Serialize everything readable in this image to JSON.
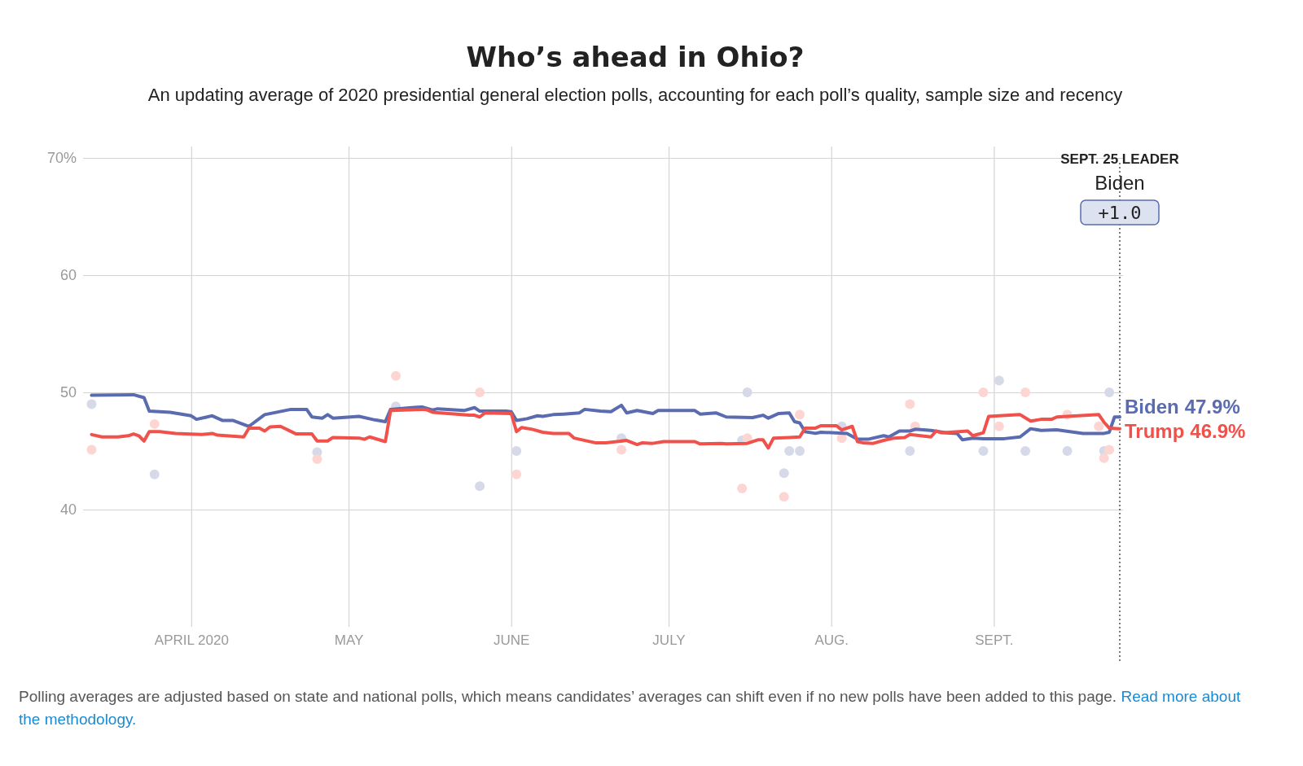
{
  "chart_data": {
    "type": "line",
    "title": "Who’s ahead in Ohio?",
    "subtitle": "An updating average of 2020 presidential general election polls, accounting for each poll’s quality, sample size and recency",
    "xlim": [
      "2020-03-12",
      "2020-09-25"
    ],
    "xticks": [
      {
        "value": "2020-04-01",
        "label": "APRIL 2020"
      },
      {
        "value": "2020-05-01",
        "label": "MAY"
      },
      {
        "value": "2020-06-01",
        "label": "JUNE"
      },
      {
        "value": "2020-07-01",
        "label": "JULY"
      },
      {
        "value": "2020-08-01",
        "label": "AUG."
      },
      {
        "value": "2020-09-01",
        "label": "SEPT."
      }
    ],
    "ylim": [
      30,
      70
    ],
    "yticks": [
      40,
      50,
      60,
      {
        "value": 70,
        "label": "70%"
      }
    ],
    "grid": true,
    "series": [
      {
        "type": "scatter",
        "color": "#d6dae8",
        "x": [
          "2020-03-13",
          "2020-03-25",
          "2020-04-25",
          "2020-05-10",
          "2020-05-26",
          "2020-06-02",
          "2020-06-22",
          "2020-07-15",
          "2020-07-16",
          "2020-07-23",
          "2020-07-24",
          "2020-07-26",
          "2020-08-03",
          "2020-08-16",
          "2020-08-30",
          "2020-09-02",
          "2020-09-07",
          "2020-09-15",
          "2020-09-22",
          "2020-09-23"
        ],
        "values": [
          49.0,
          43.0,
          44.9,
          48.8,
          42.0,
          45.0,
          46.1,
          45.9,
          50.0,
          43.1,
          45.0,
          45.0,
          47.1,
          45.0,
          45.0,
          51.0,
          45.0,
          45.0,
          45.0,
          50.0
        ]
      },
      {
        "type": "scatter",
        "color": "#fdd5d3",
        "x": [
          "2020-03-13",
          "2020-03-25",
          "2020-04-25",
          "2020-05-10",
          "2020-05-26",
          "2020-06-02",
          "2020-06-22",
          "2020-07-15",
          "2020-07-16",
          "2020-07-23",
          "2020-07-26",
          "2020-08-03",
          "2020-08-16",
          "2020-08-17",
          "2020-08-30",
          "2020-09-02",
          "2020-09-07",
          "2020-09-15",
          "2020-09-21",
          "2020-09-22",
          "2020-09-23"
        ],
        "values": [
          45.1,
          47.3,
          44.3,
          51.4,
          50.0,
          43.0,
          45.1,
          41.8,
          46.1,
          41.1,
          48.1,
          46.1,
          49.0,
          47.1,
          50.0,
          47.1,
          50.0,
          48.1,
          47.1,
          44.4,
          45.1
        ]
      },
      {
        "name": "Biden",
        "color": "#5a6bb0",
        "x": [
          "2020-03-13",
          "2020-03-21",
          "2020-03-23",
          "2020-03-24",
          "2020-03-28",
          "2020-04-01",
          "2020-04-02",
          "2020-04-05",
          "2020-04-07",
          "2020-04-09",
          "2020-04-12",
          "2020-04-15",
          "2020-04-20",
          "2020-04-23",
          "2020-04-24",
          "2020-04-26",
          "2020-04-27",
          "2020-04-28",
          "2020-05-03",
          "2020-05-06",
          "2020-05-08",
          "2020-05-09",
          "2020-05-13",
          "2020-05-15",
          "2020-05-17",
          "2020-05-18",
          "2020-05-23",
          "2020-05-25",
          "2020-05-26",
          "2020-05-31",
          "2020-06-01",
          "2020-06-02",
          "2020-06-04",
          "2020-06-06",
          "2020-06-07",
          "2020-06-09",
          "2020-06-11",
          "2020-06-14",
          "2020-06-15",
          "2020-06-18",
          "2020-06-20",
          "2020-06-22",
          "2020-06-23",
          "2020-06-25",
          "2020-06-28",
          "2020-06-29",
          "2020-07-06",
          "2020-07-07",
          "2020-07-10",
          "2020-07-12",
          "2020-07-17",
          "2020-07-19",
          "2020-07-20",
          "2020-07-22",
          "2020-07-24",
          "2020-07-25",
          "2020-07-26",
          "2020-07-27",
          "2020-07-29",
          "2020-07-30",
          "2020-08-04",
          "2020-08-06",
          "2020-08-08",
          "2020-08-11",
          "2020-08-12",
          "2020-08-14",
          "2020-08-16",
          "2020-08-17",
          "2020-08-20",
          "2020-08-23",
          "2020-08-25",
          "2020-08-26",
          "2020-08-28",
          "2020-08-30",
          "2020-09-03",
          "2020-09-06",
          "2020-09-08",
          "2020-09-10",
          "2020-09-13",
          "2020-09-18",
          "2020-09-22",
          "2020-09-23",
          "2020-09-24",
          "2020-09-25"
        ],
        "values": [
          49.75,
          49.8,
          49.55,
          48.4,
          48.3,
          48.0,
          47.7,
          48.0,
          47.6,
          47.6,
          47.1,
          48.1,
          48.55,
          48.55,
          47.9,
          47.8,
          48.1,
          47.8,
          47.95,
          47.65,
          47.5,
          48.55,
          48.7,
          48.75,
          48.5,
          48.6,
          48.45,
          48.7,
          48.4,
          48.4,
          48.35,
          47.6,
          47.75,
          48.0,
          47.95,
          48.1,
          48.15,
          48.25,
          48.55,
          48.4,
          48.35,
          48.9,
          48.25,
          48.45,
          48.2,
          48.45,
          48.45,
          48.15,
          48.25,
          47.9,
          47.85,
          48.05,
          47.8,
          48.2,
          48.25,
          47.5,
          47.4,
          46.65,
          46.5,
          46.6,
          46.5,
          46.0,
          46.0,
          46.3,
          46.2,
          46.7,
          46.7,
          46.85,
          46.75,
          46.55,
          46.5,
          45.95,
          46.1,
          46.05,
          46.05,
          46.2,
          46.9,
          46.75,
          46.8,
          46.5,
          46.5,
          46.6,
          47.9,
          47.9
        ]
      },
      {
        "name": "Trump",
        "color": "#f0524b",
        "x": [
          "2020-03-13",
          "2020-03-15",
          "2020-03-18",
          "2020-03-20",
          "2020-03-21",
          "2020-03-22",
          "2020-03-23",
          "2020-03-24",
          "2020-03-26",
          "2020-03-29",
          "2020-04-03",
          "2020-04-05",
          "2020-04-06",
          "2020-04-11",
          "2020-04-12",
          "2020-04-14",
          "2020-04-15",
          "2020-04-16",
          "2020-04-18",
          "2020-04-21",
          "2020-04-24",
          "2020-04-25",
          "2020-04-27",
          "2020-04-28",
          "2020-05-03",
          "2020-05-04",
          "2020-05-05",
          "2020-05-08",
          "2020-05-09",
          "2020-05-15",
          "2020-05-16",
          "2020-05-17",
          "2020-05-20",
          "2020-05-24",
          "2020-05-25",
          "2020-05-26",
          "2020-05-27",
          "2020-06-01",
          "2020-06-02",
          "2020-06-03",
          "2020-06-05",
          "2020-06-07",
          "2020-06-09",
          "2020-06-12",
          "2020-06-13",
          "2020-06-14",
          "2020-06-17",
          "2020-06-19",
          "2020-06-23",
          "2020-06-25",
          "2020-06-26",
          "2020-06-28",
          "2020-06-30",
          "2020-07-06",
          "2020-07-07",
          "2020-07-11",
          "2020-07-12",
          "2020-07-16",
          "2020-07-18",
          "2020-07-19",
          "2020-07-20",
          "2020-07-21",
          "2020-07-24",
          "2020-07-26",
          "2020-07-27",
          "2020-07-29",
          "2020-07-30",
          "2020-08-02",
          "2020-08-03",
          "2020-08-05",
          "2020-08-06",
          "2020-08-07",
          "2020-08-09",
          "2020-08-11",
          "2020-08-13",
          "2020-08-15",
          "2020-08-16",
          "2020-08-18",
          "2020-08-20",
          "2020-08-21",
          "2020-08-22",
          "2020-08-27",
          "2020-08-28",
          "2020-08-30",
          "2020-08-31",
          "2020-09-06",
          "2020-09-08",
          "2020-09-10",
          "2020-09-12",
          "2020-09-13",
          "2020-09-17",
          "2020-09-21",
          "2020-09-22",
          "2020-09-23",
          "2020-09-25"
        ],
        "values": [
          46.4,
          46.2,
          46.2,
          46.3,
          46.45,
          46.3,
          45.85,
          46.65,
          46.65,
          46.5,
          46.4,
          46.5,
          46.35,
          46.2,
          46.95,
          46.95,
          46.7,
          47.05,
          47.1,
          46.45,
          46.45,
          45.85,
          45.85,
          46.15,
          46.1,
          46.0,
          46.2,
          45.8,
          48.45,
          48.55,
          48.5,
          48.3,
          48.2,
          48.05,
          48.05,
          47.9,
          48.25,
          48.2,
          46.65,
          47.0,
          46.85,
          46.6,
          46.5,
          46.5,
          46.1,
          46.0,
          45.7,
          45.7,
          45.9,
          45.55,
          45.7,
          45.65,
          45.8,
          45.8,
          45.6,
          45.65,
          45.6,
          45.65,
          45.95,
          45.95,
          45.25,
          46.1,
          46.15,
          46.2,
          46.95,
          46.95,
          47.15,
          47.15,
          46.8,
          47.1,
          45.8,
          45.7,
          45.65,
          45.9,
          46.1,
          46.15,
          46.4,
          46.3,
          46.2,
          46.7,
          46.55,
          46.7,
          46.3,
          46.55,
          47.95,
          48.1,
          47.55,
          47.7,
          47.7,
          47.9,
          48.0,
          48.1,
          47.45,
          46.95,
          46.9
        ]
      }
    ],
    "ref_lines": [
      {
        "axis": "x",
        "value": "2020-09-25",
        "label": "SEPT. 25 LEADER",
        "line_style": "dotted",
        "color": "#333333"
      }
    ],
    "annotations": [
      "Biden",
      "+1.0",
      "47.9%",
      "46.9%",
      "Polling averages are adjusted based on state and national polls, which means candidates’ averages can shift even if no new polls have been added to this page.",
      "Read more about the methodology."
    ]
  }
}
